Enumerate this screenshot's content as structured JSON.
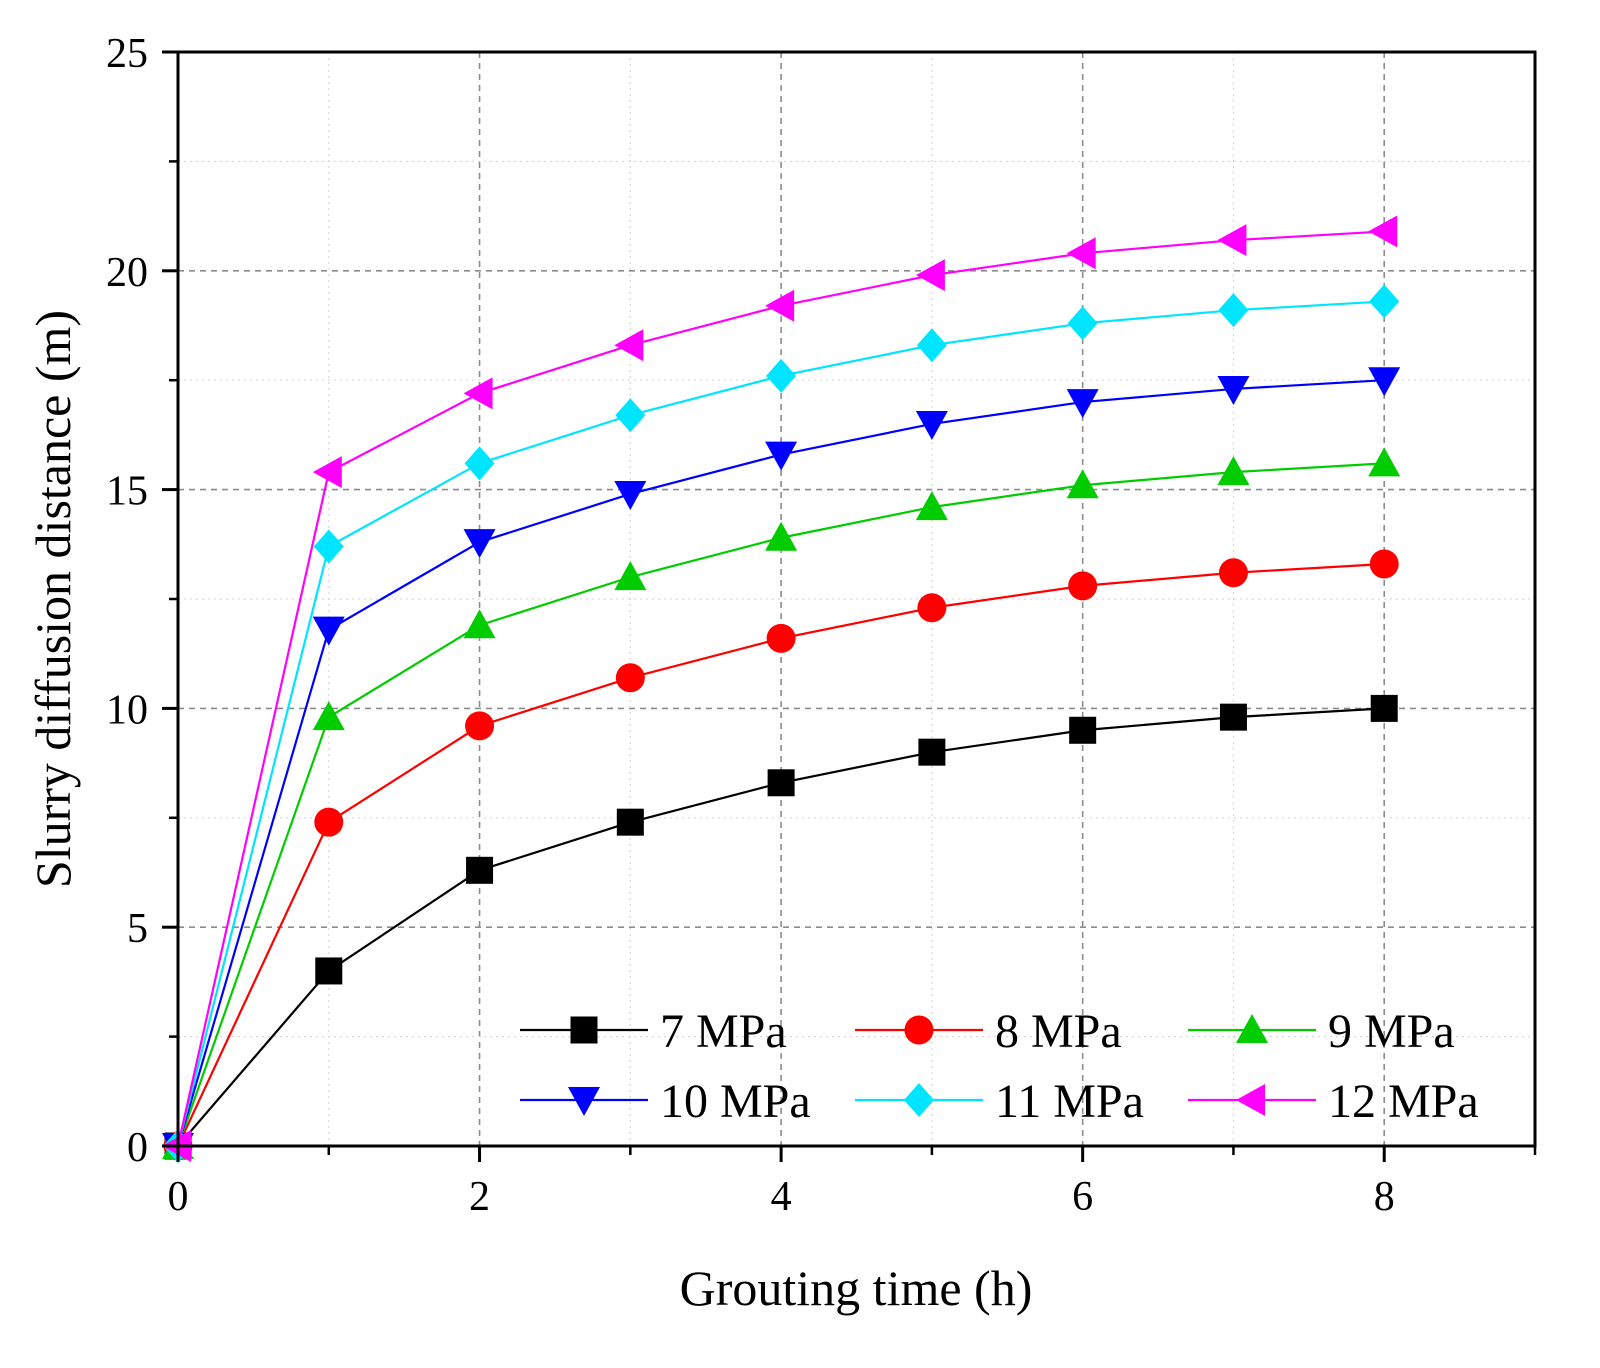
{
  "chart_data": {
    "type": "line",
    "title": "",
    "xlabel": "Grouting time (h)",
    "ylabel": "Slurry diffusion distance (m)",
    "xlim": [
      0,
      9
    ],
    "ylim": [
      0,
      25
    ],
    "xticks": [
      0,
      2,
      4,
      6,
      8
    ],
    "yticks": [
      0,
      5,
      10,
      15,
      20,
      25
    ],
    "xtick_labels": [
      "0",
      "2",
      "4",
      "6",
      "8"
    ],
    "ytick_labels": [
      "0",
      "5",
      "10",
      "15",
      "20",
      "25"
    ],
    "grid": true,
    "legend_position": "bottom-right",
    "x": [
      0,
      1,
      2,
      3,
      4,
      5,
      6,
      7,
      8
    ],
    "series": [
      {
        "name": "7 MPa",
        "color": "#000000",
        "marker": "square",
        "values": [
          0,
          4.0,
          6.3,
          7.4,
          8.3,
          9.0,
          9.5,
          9.8,
          10.0
        ]
      },
      {
        "name": "8 MPa",
        "color": "#ff0000",
        "marker": "circle",
        "values": [
          0,
          7.4,
          9.6,
          10.7,
          11.6,
          12.3,
          12.8,
          13.1,
          13.3
        ]
      },
      {
        "name": "9 MPa",
        "color": "#00cc00",
        "marker": "triangle-up",
        "values": [
          0,
          9.8,
          11.9,
          13.0,
          13.9,
          14.6,
          15.1,
          15.4,
          15.6
        ]
      },
      {
        "name": "10 MPa",
        "color": "#0000ff",
        "marker": "triangle-down",
        "values": [
          0,
          11.8,
          13.8,
          14.9,
          15.8,
          16.5,
          17.0,
          17.3,
          17.5
        ]
      },
      {
        "name": "11 MPa",
        "color": "#00e5ff",
        "marker": "diamond",
        "values": [
          0,
          13.7,
          15.6,
          16.7,
          17.6,
          18.3,
          18.8,
          19.1,
          19.3
        ]
      },
      {
        "name": "12 MPa",
        "color": "#ff00ff",
        "marker": "triangle-left",
        "values": [
          0,
          15.4,
          17.2,
          18.3,
          19.2,
          19.9,
          20.4,
          20.7,
          20.9
        ]
      }
    ]
  }
}
